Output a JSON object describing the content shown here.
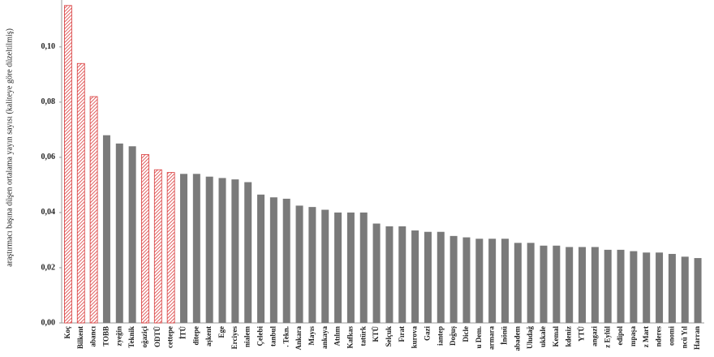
{
  "chart_data": {
    "type": "bar",
    "y_label": "araştırmacı başına düşen ortalama yayın sayısı (kaliteye göre düzeltilmiş)",
    "categories": [
      "Koç",
      "Bilkent",
      "abancı",
      "TOBB",
      "zyeğin",
      "Teknik",
      "oğaziçi",
      "ODTÜ",
      "cettepe",
      "İTÜ",
      "ditepe",
      "aşkent",
      "Ege",
      "Erciyes",
      "nialem",
      "Çelebi",
      "tanbul",
      ". Tekn.",
      "Ankara",
      "Mayıs",
      "ankaya",
      "Atılım",
      "Kafkas",
      "tatürk",
      "KTÜ",
      "Selçuk",
      "Fırat",
      "kurova",
      "Gazi",
      "iantep",
      "Doğuş",
      "Dicle",
      "u Dem.",
      "armara",
      "İnönü",
      "abadem",
      "Uludağ",
      "ukkale",
      "Kemal",
      "kdeniz",
      "YTÜ",
      "angazi",
      "z Eylül",
      "edipol",
      "mpaşa",
      "z Mart",
      "nderes",
      "onomi",
      "ncü Yıl",
      "Harran"
    ],
    "values": [
      0.115,
      0.094,
      0.082,
      0.068,
      0.065,
      0.064,
      0.061,
      0.0555,
      0.0545,
      0.054,
      0.054,
      0.053,
      0.0525,
      0.052,
      0.051,
      0.0465,
      0.0455,
      0.045,
      0.0425,
      0.042,
      0.041,
      0.04,
      0.04,
      0.04,
      0.036,
      0.035,
      0.035,
      0.0335,
      0.033,
      0.033,
      0.0315,
      0.031,
      0.0305,
      0.0305,
      0.0305,
      0.029,
      0.029,
      0.028,
      0.028,
      0.0275,
      0.0275,
      0.0275,
      0.0265,
      0.0265,
      0.026,
      0.0255,
      0.0255,
      0.025,
      0.024,
      0.0235
    ],
    "colors": [
      "#d93a3a",
      "#d93a3a",
      "#d93a3a",
      "#7a7a7a",
      "#7a7a7a",
      "#7a7a7a",
      "#d93a3a",
      "#d93a3a",
      "#d93a3a",
      "#7a7a7a",
      "#7a7a7a",
      "#7a7a7a",
      "#7a7a7a",
      "#7a7a7a",
      "#7a7a7a",
      "#7a7a7a",
      "#7a7a7a",
      "#7a7a7a",
      "#7a7a7a",
      "#7a7a7a",
      "#7a7a7a",
      "#7a7a7a",
      "#7a7a7a",
      "#7a7a7a",
      "#7a7a7a",
      "#7a7a7a",
      "#7a7a7a",
      "#7a7a7a",
      "#7a7a7a",
      "#7a7a7a",
      "#7a7a7a",
      "#7a7a7a",
      "#7a7a7a",
      "#7a7a7a",
      "#7a7a7a",
      "#7a7a7a",
      "#7a7a7a",
      "#7a7a7a",
      "#7a7a7a",
      "#7a7a7a",
      "#7a7a7a",
      "#7a7a7a",
      "#7a7a7a",
      "#7a7a7a",
      "#7a7a7a",
      "#7a7a7a",
      "#7a7a7a",
      "#7a7a7a",
      "#7a7a7a",
      "#7a7a7a"
    ],
    "hatch_color": "#d93a3a",
    "ylim": [
      0,
      0.117
    ],
    "yticks": [
      {
        "value": 0,
        "label": "0,00"
      },
      {
        "value": 0.02,
        "label": "0,02"
      },
      {
        "value": 0.04,
        "label": "0,04"
      },
      {
        "value": 0.06,
        "label": "0,06"
      },
      {
        "value": 0.08,
        "label": "0,08"
      },
      {
        "value": 0.1,
        "label": "0,10"
      }
    ],
    "grid": false
  }
}
